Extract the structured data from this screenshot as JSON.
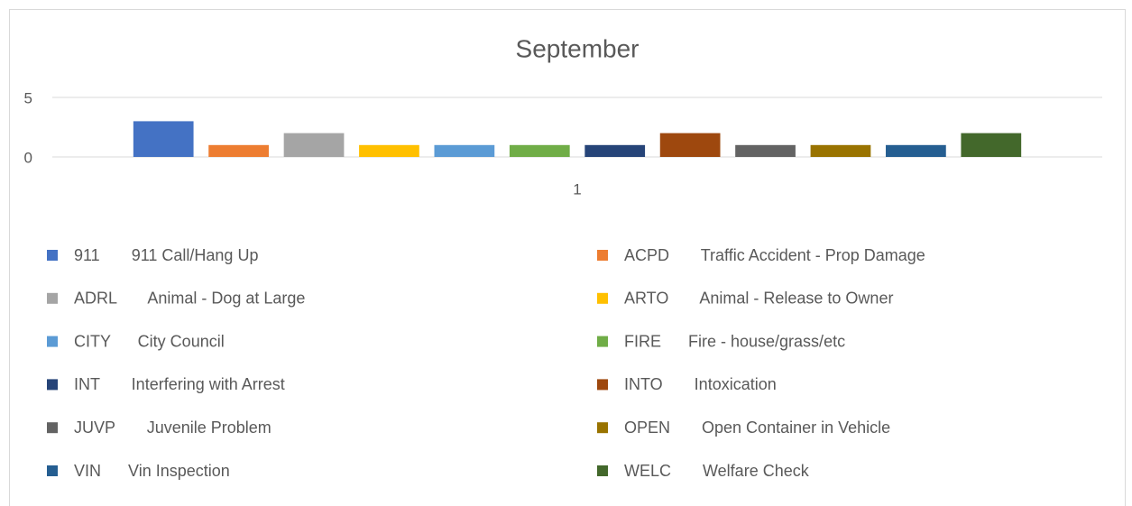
{
  "chart_data": {
    "type": "bar",
    "title": "September",
    "categories": [
      "1"
    ],
    "ylim": [
      0,
      5
    ],
    "yticks": [
      0,
      5
    ],
    "grid": true,
    "series": [
      {
        "name": "911       911 Call/Hang Up",
        "color": "#4472c4",
        "values": [
          3
        ]
      },
      {
        "name": "ACPD       Traffic Accident - Prop Damage",
        "color": "#ed7d31",
        "values": [
          1
        ]
      },
      {
        "name": "ADRL       Animal - Dog at Large",
        "color": "#a5a5a5",
        "values": [
          2
        ]
      },
      {
        "name": "ARTO       Animal - Release to Owner",
        "color": "#ffc000",
        "values": [
          1
        ]
      },
      {
        "name": "CITY      City Council",
        "color": "#5b9bd5",
        "values": [
          1
        ]
      },
      {
        "name": "FIRE      Fire - house/grass/etc",
        "color": "#70ad47",
        "values": [
          1
        ]
      },
      {
        "name": "INT       Interfering with Arrest",
        "color": "#264478",
        "values": [
          1
        ]
      },
      {
        "name": "INTO       Intoxication",
        "color": "#9e480e",
        "values": [
          2
        ]
      },
      {
        "name": "JUVP       Juvenile Problem",
        "color": "#636363",
        "values": [
          1
        ]
      },
      {
        "name": "OPEN       Open Container in Vehicle",
        "color": "#997300",
        "values": [
          1
        ]
      },
      {
        "name": "VIN      Vin Inspection",
        "color": "#255e91",
        "values": [
          1
        ]
      },
      {
        "name": "WELC       Welfare Check",
        "color": "#43682b",
        "values": [
          2
        ]
      }
    ]
  }
}
